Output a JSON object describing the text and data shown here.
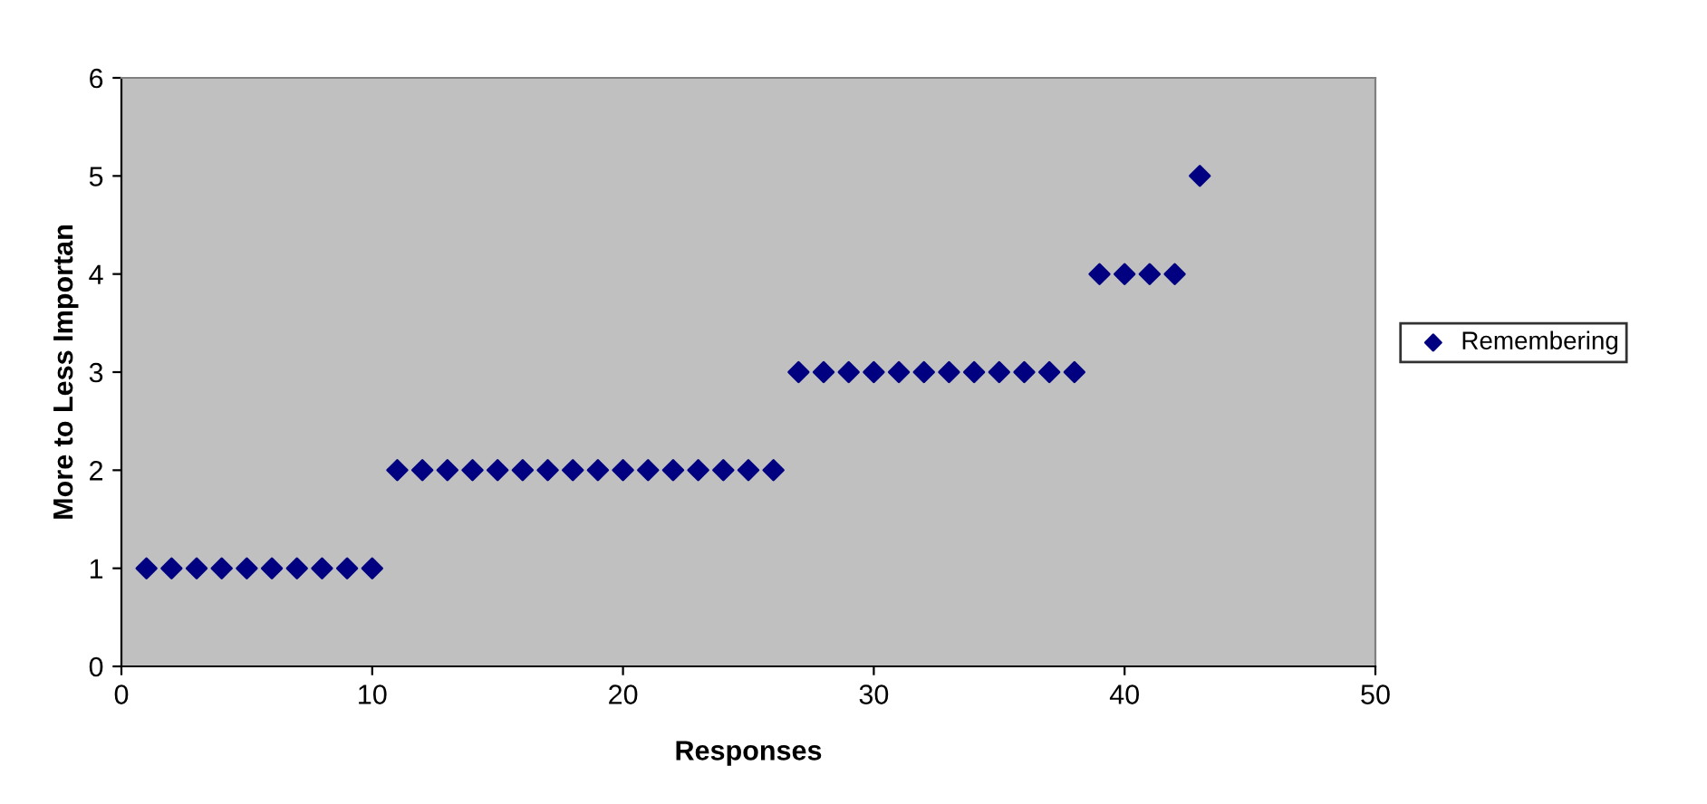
{
  "chart_data": {
    "type": "scatter",
    "xlabel": "Responses",
    "ylabel": "More to Less Importan",
    "x": [
      1,
      2,
      3,
      4,
      5,
      6,
      7,
      8,
      9,
      10,
      11,
      12,
      13,
      14,
      15,
      16,
      17,
      18,
      19,
      20,
      21,
      22,
      23,
      24,
      25,
      26,
      27,
      28,
      29,
      30,
      31,
      32,
      33,
      34,
      35,
      36,
      37,
      38,
      39,
      40,
      41,
      42,
      43
    ],
    "series": [
      {
        "name": "Remembering",
        "color": "#000080",
        "values": [
          1,
          1,
          1,
          1,
          1,
          1,
          1,
          1,
          1,
          1,
          2,
          2,
          2,
          2,
          2,
          2,
          2,
          2,
          2,
          2,
          2,
          2,
          2,
          2,
          2,
          2,
          3,
          3,
          3,
          3,
          3,
          3,
          3,
          3,
          3,
          3,
          3,
          3,
          4,
          4,
          4,
          4,
          5
        ]
      }
    ],
    "xlim": [
      0,
      50
    ],
    "ylim": [
      0,
      6
    ],
    "xticks": [
      0,
      10,
      20,
      30,
      40,
      50
    ],
    "yticks": [
      0,
      1,
      2,
      3,
      4,
      5,
      6
    ],
    "grid": false,
    "legend": "right",
    "marker": "diamond"
  }
}
